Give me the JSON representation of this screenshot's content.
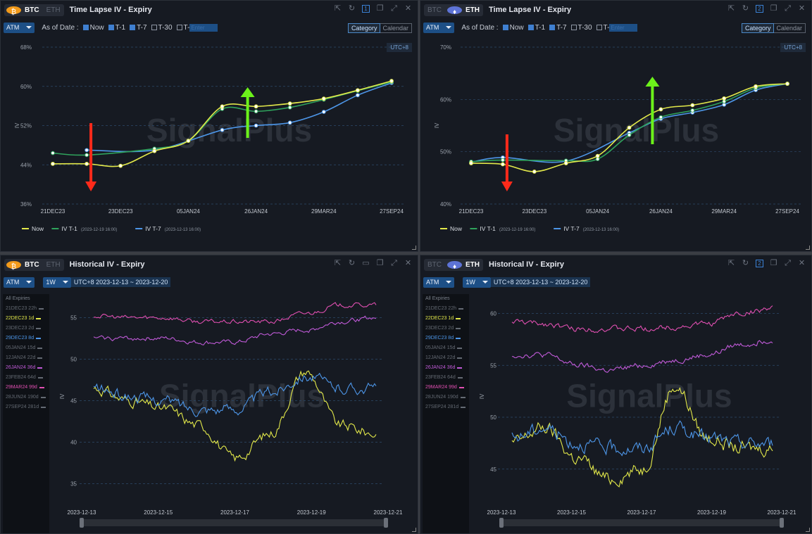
{
  "panels": [
    {
      "coin_btc": "BTC",
      "coin_eth": "ETH",
      "active": "btc",
      "title": "Time Lapse IV - Expiry",
      "window_num": "1",
      "selector": "ATM",
      "as_of_label": "As of Date :",
      "checks": [
        {
          "label": "Now",
          "on": true
        },
        {
          "label": "T-1",
          "on": true
        },
        {
          "label": "T-7",
          "on": true
        },
        {
          "label": "T-30",
          "on": false
        },
        {
          "label": "T-",
          "on": false
        }
      ],
      "t_placeholder": "Enter",
      "toggle": [
        "Category",
        "Calendar"
      ],
      "tz": "UTC+8",
      "legend": [
        {
          "name": "Now",
          "sub": ""
        },
        {
          "name": "IV T-1",
          "sub": "(2023-12-19 16:00)"
        },
        {
          "name": "IV T-7",
          "sub": "(2023-12-13 16:00)"
        }
      ]
    },
    {
      "coin_btc": "BTC",
      "coin_eth": "ETH",
      "active": "eth",
      "title": "Time Lapse IV - Expiry",
      "window_num": "2",
      "selector": "ATM",
      "as_of_label": "As of Date :",
      "checks": [
        {
          "label": "Now",
          "on": true
        },
        {
          "label": "T-1",
          "on": true
        },
        {
          "label": "T-7",
          "on": true
        },
        {
          "label": "T-30",
          "on": false
        },
        {
          "label": "T-",
          "on": false
        }
      ],
      "t_placeholder": "Enter",
      "toggle": [
        "Category",
        "Calendar"
      ],
      "tz": "UTC+8",
      "legend": [
        {
          "name": "Now",
          "sub": ""
        },
        {
          "name": "IV T-1",
          "sub": "(2023-12-19 16:00)"
        },
        {
          "name": "IV T-7",
          "sub": "(2023-12-13 16:00)"
        }
      ]
    },
    {
      "coin_btc": "BTC",
      "coin_eth": "ETH",
      "active": "btc",
      "title": "Historical IV - Expiry",
      "selector": "ATM",
      "period": "1W",
      "range": "UTC+8 2023-12-13 ~ 2023-12-20",
      "expiries": [
        {
          "label": "All Expiries",
          "color": "#7a808a",
          "line": false
        },
        {
          "label": "21DEC23 22h",
          "color": "#646a73",
          "line": true
        },
        {
          "label": "22DEC23 1d",
          "color": "#e3e94a",
          "line": true
        },
        {
          "label": "23DEC23 2d",
          "color": "#646a73",
          "line": true
        },
        {
          "label": "29DEC23 8d",
          "color": "#4d96e8",
          "line": true
        },
        {
          "label": "05JAN24 15d",
          "color": "#646a73",
          "line": true
        },
        {
          "label": "12JAN24 22d",
          "color": "#646a73",
          "line": true
        },
        {
          "label": "26JAN24 36d",
          "color": "#c05ad8",
          "line": true
        },
        {
          "label": "23FEB24 64d",
          "color": "#646a73",
          "line": true
        },
        {
          "label": "29MAR24 99d",
          "color": "#e04fb1",
          "line": true
        },
        {
          "label": "28JUN24 190d",
          "color": "#646a73",
          "line": true
        },
        {
          "label": "27SEP24 281d",
          "color": "#646a73",
          "line": true
        }
      ]
    },
    {
      "coin_btc": "BTC",
      "coin_eth": "ETH",
      "active": "eth",
      "title": "Historical IV - Expiry",
      "window_num": "2",
      "selector": "ATM",
      "period": "1W",
      "range": "UTC+8 2023-12-13 ~ 2023-12-20",
      "expiries": [
        {
          "label": "All Expiries",
          "color": "#7a808a",
          "line": false
        },
        {
          "label": "21DEC23 22h",
          "color": "#646a73",
          "line": true
        },
        {
          "label": "22DEC23 1d",
          "color": "#e3e94a",
          "line": true
        },
        {
          "label": "23DEC23 2d",
          "color": "#646a73",
          "line": true
        },
        {
          "label": "29DEC23 8d",
          "color": "#4d96e8",
          "line": true
        },
        {
          "label": "05JAN24 15d",
          "color": "#646a73",
          "line": true
        },
        {
          "label": "12JAN24 22d",
          "color": "#646a73",
          "line": true
        },
        {
          "label": "26JAN24 36d",
          "color": "#c05ad8",
          "line": true
        },
        {
          "label": "23FEB24 64d",
          "color": "#646a73",
          "line": true
        },
        {
          "label": "29MAR24 99d",
          "color": "#e04fb1",
          "line": true
        },
        {
          "label": "28JUN24 190d",
          "color": "#646a73",
          "line": true
        },
        {
          "label": "27SEP24 281d",
          "color": "#646a73",
          "line": true
        }
      ]
    }
  ],
  "watermark": "SignalPlus",
  "chart_data": [
    {
      "type": "line",
      "ylabel": "IV",
      "categories": [
        "21DEC23",
        "22DEC23",
        "23DEC23",
        "29DEC23",
        "05JAN24",
        "12JAN24",
        "26JAN24",
        "23FEB24",
        "29MAR24",
        "28JUN24",
        "27SEP24"
      ],
      "ylim": [
        36,
        68
      ],
      "yticks": [
        36,
        44,
        52,
        60,
        68
      ],
      "ytick_labels": [
        "36%",
        "44%",
        "52%",
        "60%",
        "68%"
      ],
      "xticks": [
        "21DEC23",
        "23DEC23",
        "05JAN24",
        "26JAN24",
        "29MAR24",
        "27SEP24"
      ],
      "series": [
        {
          "name": "Now",
          "color": "#e3e94a",
          "values": [
            44.2,
            44.2,
            43.8,
            46.8,
            48.9,
            55.9,
            55.9,
            56.5,
            57.5,
            59.2,
            61.1
          ]
        },
        {
          "name": "IV T-1",
          "color": "#2fa35c",
          "values": [
            46.4,
            46.0,
            null,
            47.3,
            48.9,
            55.4,
            54.9,
            55.7,
            57.3,
            59.1,
            60.9
          ]
        },
        {
          "name": "IV T-7",
          "color": "#4d96e8",
          "values": [
            null,
            47.0,
            null,
            47.0,
            null,
            51.1,
            52.0,
            52.6,
            54.8,
            58.2,
            60.7
          ]
        }
      ],
      "annotations": [
        {
          "type": "arrow-down",
          "color": "#ff2a1a",
          "at": "22DEC23"
        },
        {
          "type": "arrow-up",
          "color": "#6cf21a",
          "at": "26JAN24"
        }
      ]
    },
    {
      "type": "line",
      "ylabel": "IV",
      "categories": [
        "21DEC23",
        "22DEC23",
        "23DEC23",
        "29DEC23",
        "05JAN24",
        "12JAN24",
        "26JAN24",
        "23FEB24",
        "29MAR24",
        "28JUN24",
        "27SEP24"
      ],
      "ylim": [
        40,
        70
      ],
      "yticks": [
        40,
        50,
        60,
        70
      ],
      "ytick_labels": [
        "40%",
        "50%",
        "60%",
        "70%"
      ],
      "xticks": [
        "21DEC23",
        "23DEC23",
        "05JAN24",
        "26JAN24",
        "29MAR24",
        "27SEP24"
      ],
      "series": [
        {
          "name": "Now",
          "color": "#e3e94a",
          "values": [
            47.8,
            47.6,
            46.2,
            47.8,
            49.2,
            54.6,
            58.1,
            58.9,
            60.2,
            62.5,
            63.0
          ]
        },
        {
          "name": "IV T-1",
          "color": "#2fa35c",
          "values": [
            48.1,
            48.4,
            null,
            48.3,
            48.6,
            53.2,
            56.6,
            57.9,
            59.6,
            62.2,
            63.0
          ]
        },
        {
          "name": "IV T-7",
          "color": "#4d96e8",
          "values": [
            48.0,
            48.9,
            null,
            48.2,
            null,
            53.6,
            56.3,
            57.5,
            59.0,
            61.8,
            63.0
          ]
        }
      ],
      "annotations": [
        {
          "type": "arrow-down",
          "color": "#ff2a1a",
          "at": "22DEC23"
        },
        {
          "type": "arrow-up",
          "color": "#6cf21a",
          "at": "26JAN24"
        }
      ]
    },
    {
      "type": "line",
      "ylabel": "IV",
      "x": [
        "2023-12-13",
        "2023-12-14",
        "2023-12-15",
        "2023-12-16",
        "2023-12-17",
        "2023-12-18",
        "2023-12-19",
        "2023-12-20",
        "2023-12-21"
      ],
      "xticks": [
        "2023-12-13",
        "2023-12-15",
        "2023-12-17",
        "2023-12-19",
        "2023-12-21"
      ],
      "ylim": [
        33,
        58
      ],
      "yticks": [
        35,
        40,
        45,
        50,
        55
      ],
      "series": [
        {
          "name": "22DEC23 1d",
          "color": "#e3e94a",
          "values": [
            46.5,
            45,
            44,
            42,
            38,
            41,
            48.5,
            42,
            41
          ]
        },
        {
          "name": "29DEC23 8d",
          "color": "#4d96e8",
          "values": [
            46.5,
            45.5,
            45,
            44,
            44,
            46,
            48,
            46.5,
            46.5
          ]
        },
        {
          "name": "26JAN24 36d",
          "color": "#c05ad8",
          "values": [
            52.5,
            52.5,
            52.5,
            52,
            52,
            53,
            53.5,
            54.5,
            55
          ]
        },
        {
          "name": "29MAR24 99d",
          "color": "#e04fb1",
          "values": [
            55.2,
            55,
            55,
            54.5,
            54.5,
            54.5,
            55.5,
            56.5,
            56.5
          ]
        }
      ]
    },
    {
      "type": "line",
      "ylabel": "IV",
      "x": [
        "2023-12-13",
        "2023-12-14",
        "2023-12-15",
        "2023-12-16",
        "2023-12-17",
        "2023-12-18",
        "2023-12-19",
        "2023-12-20",
        "2023-12-21"
      ],
      "xticks": [
        "2023-12-13",
        "2023-12-15",
        "2023-12-17",
        "2023-12-19",
        "2023-12-21"
      ],
      "ylim": [
        42,
        62
      ],
      "yticks": [
        45,
        50,
        55,
        60
      ],
      "series": [
        {
          "name": "22DEC23 1d",
          "color": "#e3e94a",
          "values": [
            47.5,
            49,
            46,
            44,
            45,
            53,
            48,
            47,
            47
          ]
        },
        {
          "name": "29DEC23 8d",
          "color": "#4d96e8",
          "values": [
            48,
            49,
            47.5,
            47,
            47,
            49,
            48,
            47.5,
            47.5
          ]
        },
        {
          "name": "26JAN24 36d",
          "color": "#c05ad8",
          "values": [
            56,
            56,
            55,
            54.5,
            55,
            55.5,
            56,
            57,
            57.5
          ]
        },
        {
          "name": "29MAR24 99d",
          "color": "#e04fb1",
          "values": [
            59.2,
            59,
            58.5,
            58.5,
            58.5,
            58.7,
            59,
            60,
            60.5
          ]
        }
      ]
    }
  ]
}
